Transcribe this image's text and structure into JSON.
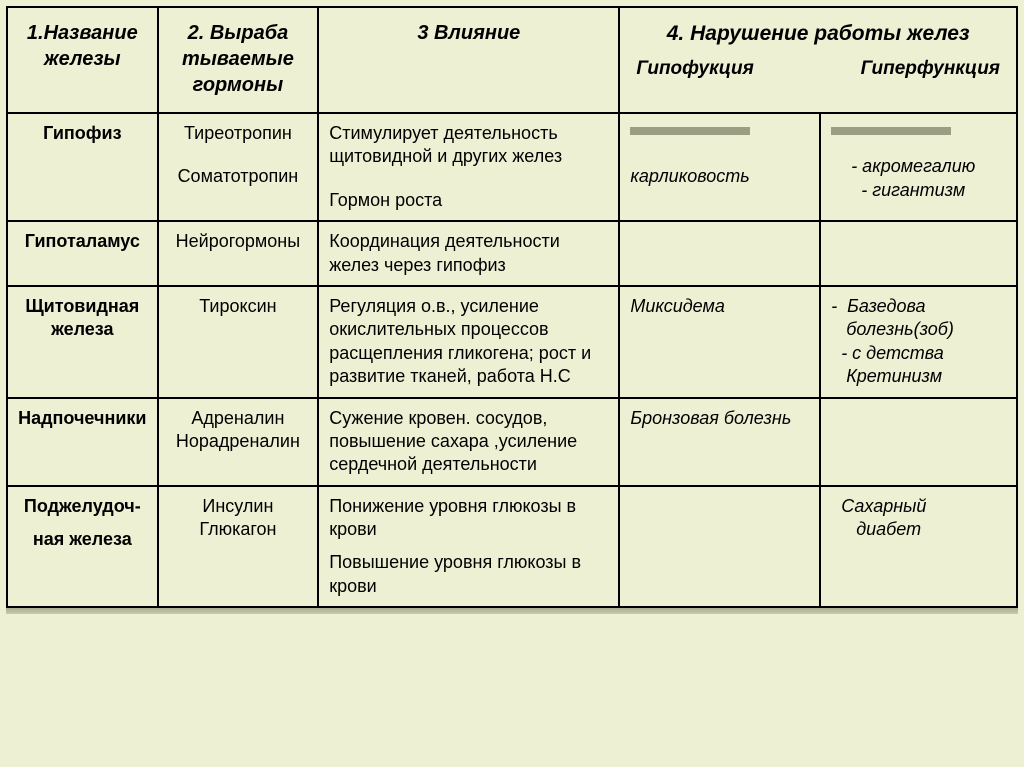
{
  "headers": {
    "col1": "1.Название железы",
    "col2": "2. Выраба тываемые гормоны",
    "col3": "3 Влияние",
    "col45": "4. Нарушение работы желез",
    "sub4": "Гипофукция",
    "sub5": "Гиперфункция"
  },
  "rows": [
    {
      "gland": "Гипофиз",
      "hormones_html": "Тиреотропин<span class=\"sp\"></span><span class=\"sp\"></span>Соматотропин",
      "influence_html": "Стимулирует деятельность щитовидной и других желез<span class=\"sp\"></span><span class=\"sp\"></span>Гормон роста",
      "hypo_html": "<span class=\"shadow-mark\"></span><span class=\"sp\"></span><span class=\"sp\"></span>карликовость",
      "hyper_html": "<span class=\"shadow-mark\"></span><span class=\"sp\"></span>&nbsp;&nbsp;&nbsp;&nbsp;- акромегалию<br>&nbsp;&nbsp;&nbsp;&nbsp;&nbsp;&nbsp;- гигантизм"
    },
    {
      "gland": "Гипоталамус",
      "hormones_html": "Нейрогормоны",
      "influence_html": "Координация деятельности желез через гипофиз",
      "hypo_html": "",
      "hyper_html": ""
    },
    {
      "gland": "Щитовидная железа",
      "hormones_html": "Тироксин",
      "influence_html": "Регуляция о.в., усиление окислительных процессов расщепления гликогена; рост и развитие тканей, работа Н.С",
      "hypo_html": "Миксидема",
      "hyper_html": "- &nbsp;Базедова<br>&nbsp;&nbsp;&nbsp;болезнь(зоб)<br>&nbsp;&nbsp;- с детства<br>&nbsp;&nbsp;&nbsp;Кретинизм"
    },
    {
      "gland": "Надпочечники",
      "hormones_html": "Адреналин<br>Норадреналин",
      "influence_html": "Сужение кровен. сосудов, повышение сахара ,усиление сердечной деятельности",
      "hypo_html": "Бронзовая болезнь",
      "hyper_html": ""
    },
    {
      "gland_html": "Поджелудоч-<span class=\"sp\"></span>ная железа",
      "hormones_html": "Инсулин<br>Глюкагон",
      "influence_html": "Понижение уровня глюкозы в крови<span class=\"sp\"></span>Повышение уровня глюкозы в крови",
      "hypo_html": "",
      "hyper_html": "&nbsp;&nbsp;Сахарный<br>&nbsp;&nbsp;&nbsp;&nbsp;&nbsp;диабет"
    }
  ]
}
